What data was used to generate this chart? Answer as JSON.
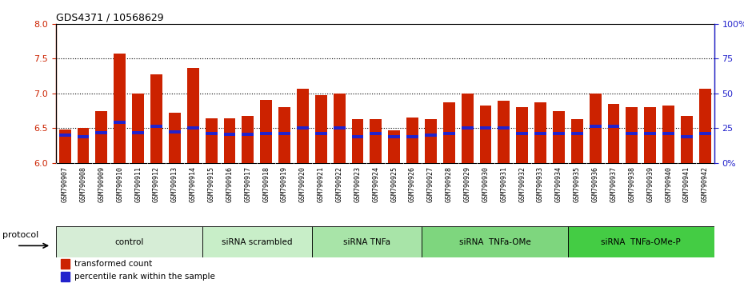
{
  "title": "GDS4371 / 10568629",
  "samples": [
    "GSM790907",
    "GSM790908",
    "GSM790909",
    "GSM790910",
    "GSM790911",
    "GSM790912",
    "GSM790913",
    "GSM790914",
    "GSM790915",
    "GSM790916",
    "GSM790917",
    "GSM790918",
    "GSM790919",
    "GSM790920",
    "GSM790921",
    "GSM790922",
    "GSM790923",
    "GSM790924",
    "GSM790925",
    "GSM790926",
    "GSM790927",
    "GSM790928",
    "GSM790929",
    "GSM790930",
    "GSM790931",
    "GSM790932",
    "GSM790933",
    "GSM790934",
    "GSM790935",
    "GSM790936",
    "GSM790937",
    "GSM790938",
    "GSM790939",
    "GSM790940",
    "GSM790941",
    "GSM790942"
  ],
  "bar_values": [
    6.48,
    6.5,
    6.75,
    7.57,
    7.0,
    7.28,
    6.72,
    7.37,
    6.64,
    6.64,
    6.68,
    6.9,
    6.8,
    7.07,
    6.97,
    7.0,
    6.63,
    6.63,
    6.47,
    6.65,
    6.63,
    6.87,
    7.0,
    6.82,
    6.89,
    6.8,
    6.87,
    6.75,
    6.63,
    7.0,
    6.85,
    6.8,
    6.8,
    6.83,
    6.67,
    7.07
  ],
  "percentile_values": [
    6.4,
    6.38,
    6.43,
    6.58,
    6.43,
    6.52,
    6.44,
    6.5,
    6.42,
    6.41,
    6.41,
    6.42,
    6.42,
    6.5,
    6.42,
    6.5,
    6.38,
    6.42,
    6.38,
    6.38,
    6.4,
    6.42,
    6.5,
    6.5,
    6.5,
    6.42,
    6.42,
    6.42,
    6.42,
    6.52,
    6.52,
    6.42,
    6.42,
    6.42,
    6.38,
    6.42
  ],
  "groups": [
    {
      "label": "control",
      "start": 0,
      "end": 7,
      "color": "#d6edd6"
    },
    {
      "label": "siRNA scrambled",
      "start": 8,
      "end": 13,
      "color": "#c8eec8"
    },
    {
      "label": "siRNA TNFa",
      "start": 14,
      "end": 19,
      "color": "#a8e4a8"
    },
    {
      "label": "siRNA  TNFa-OMe",
      "start": 20,
      "end": 27,
      "color": "#7ed67e"
    },
    {
      "label": "siRNA  TNFa-OMe-P",
      "start": 28,
      "end": 35,
      "color": "#44cc44"
    }
  ],
  "bar_color": "#cc2200",
  "percentile_color": "#2222cc",
  "ylim_left": [
    6.0,
    8.0
  ],
  "ylim_right": [
    0,
    100
  ],
  "yticks_left": [
    6.0,
    6.5,
    7.0,
    7.5,
    8.0
  ],
  "yticks_right": [
    0,
    25,
    50,
    75,
    100
  ],
  "ytick_labels_right": [
    "0%",
    "25",
    "50",
    "75",
    "100%"
  ],
  "hlines": [
    6.5,
    7.0,
    7.5
  ],
  "bar_width": 0.65,
  "legend_items": [
    {
      "label": "transformed count",
      "color": "#cc2200"
    },
    {
      "label": "percentile rank within the sample",
      "color": "#2222cc"
    }
  ],
  "protocol_label": "protocol"
}
